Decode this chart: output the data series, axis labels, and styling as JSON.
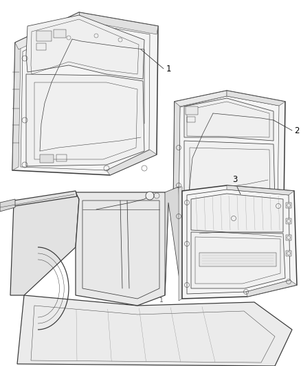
{
  "background_color": "#ffffff",
  "fig_width": 4.38,
  "fig_height": 5.33,
  "dpi": 100,
  "line_color": "#3a3a3a",
  "light_gray": "#d8d8d8",
  "mid_gray": "#c0c0c0",
  "label_1": "1",
  "label_2": "2",
  "label_3": "3",
  "lw_outer": 1.1,
  "lw_inner": 0.55,
  "lw_thin": 0.35,
  "font_size": 8.5
}
